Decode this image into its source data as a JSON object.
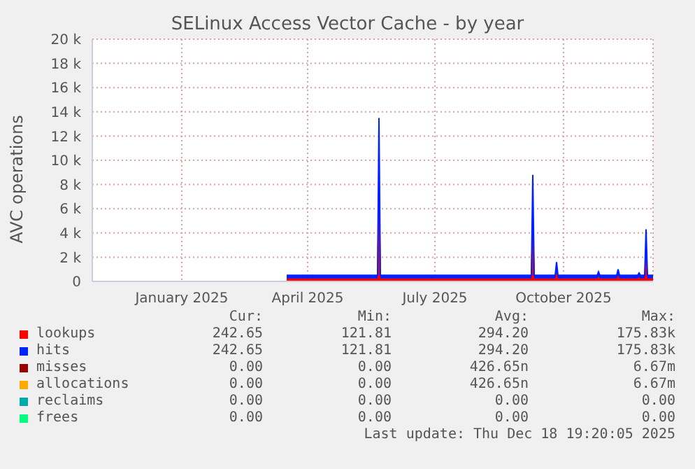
{
  "chart_data": {
    "type": "area",
    "title": "SELinux Access Vector Cache - by year",
    "ylabel": "AVC operations",
    "stacked": true,
    "x": [
      "2025-03-31",
      "2025-06-04",
      "2025-06-05",
      "2025-06-06",
      "2025-09-22",
      "2025-09-23",
      "2025-09-24",
      "2025-10-09",
      "2025-10-10",
      "2025-10-11",
      "2025-11-08",
      "2025-11-09",
      "2025-11-10",
      "2025-11-22",
      "2025-11-23",
      "2025-11-24",
      "2025-12-07",
      "2025-12-08",
      "2025-12-09",
      "2025-12-12",
      "2025-12-13",
      "2025-12-14",
      "2025-12-18"
    ],
    "series": [
      {
        "name": "lookups",
        "color": "#ff0000",
        "values": [
          250,
          250,
          6750,
          250,
          250,
          4400,
          250,
          250,
          800,
          250,
          250,
          400,
          250,
          250,
          500,
          250,
          250,
          350,
          250,
          250,
          2150,
          250,
          250
        ]
      },
      {
        "name": "hits",
        "color": "#0022ff",
        "values": [
          250,
          250,
          6750,
          250,
          250,
          4400,
          250,
          250,
          800,
          250,
          250,
          400,
          250,
          250,
          500,
          250,
          250,
          350,
          250,
          250,
          2150,
          250,
          250
        ]
      },
      {
        "name": "misses",
        "color": "#990000",
        "values": [
          null,
          null,
          null,
          null,
          null,
          null,
          null,
          null,
          null,
          null,
          null,
          null,
          null,
          null,
          null,
          null,
          null,
          null,
          null,
          null,
          null,
          null,
          null
        ]
      },
      {
        "name": "allocations",
        "color": "#ffaa00",
        "values": [
          null,
          null,
          null,
          null,
          null,
          null,
          null,
          null,
          null,
          null,
          null,
          null,
          null,
          null,
          null,
          null,
          null,
          null,
          null,
          null,
          null,
          null,
          null
        ]
      },
      {
        "name": "reclaims",
        "color": "#00aaaa",
        "values": [
          null,
          null,
          null,
          null,
          null,
          null,
          null,
          null,
          null,
          null,
          null,
          null,
          null,
          null,
          null,
          null,
          null,
          null,
          null,
          null,
          null,
          null,
          null
        ]
      },
      {
        "name": "frees",
        "color": "#00ff7f",
        "values": [
          null,
          null,
          null,
          null,
          null,
          null,
          null,
          null,
          null,
          null,
          null,
          null,
          null,
          null,
          null,
          null,
          null,
          null,
          null,
          null,
          null,
          null,
          null
        ]
      }
    ],
    "xlim": [
      "2024-11-12",
      "2025-12-18"
    ],
    "xticks": [
      {
        "value": "2025-01-15",
        "label": "January 2025"
      },
      {
        "value": "2025-04-15",
        "label": "April 2025"
      },
      {
        "value": "2025-07-15",
        "label": "July 2025"
      },
      {
        "value": "2025-10-15",
        "label": "October 2025"
      }
    ],
    "ylim": [
      0,
      20000
    ],
    "yticks": [
      {
        "value": 0,
        "label": "0"
      },
      {
        "value": 2000,
        "label": "2 k"
      },
      {
        "value": 4000,
        "label": "4 k"
      },
      {
        "value": 6000,
        "label": "6 k"
      },
      {
        "value": 8000,
        "label": "8 k"
      },
      {
        "value": 10000,
        "label": "10 k"
      },
      {
        "value": 12000,
        "label": "12 k"
      },
      {
        "value": 14000,
        "label": "14 k"
      },
      {
        "value": 16000,
        "label": "16 k"
      },
      {
        "value": 18000,
        "label": "18 k"
      },
      {
        "value": 20000,
        "label": "20 k"
      }
    ],
    "grid": true,
    "legend": "bottom",
    "annotations": [
      "Cur:",
      "Min:",
      "Avg:",
      "Max:",
      "242.65",
      "121.81",
      "294.20",
      "175.83k",
      "242.65",
      "121.81",
      "294.20",
      "175.83k",
      "0.00",
      "0.00",
      "426.65n",
      "6.67m",
      "0.00",
      "0.00",
      "426.65n",
      "6.67m",
      "0.00",
      "0.00",
      "0.00",
      "0.00",
      "0.00",
      "0.00",
      "0.00",
      "0.00",
      "Last update: Thu Dec 18 19:20:05 2025"
    ]
  }
}
